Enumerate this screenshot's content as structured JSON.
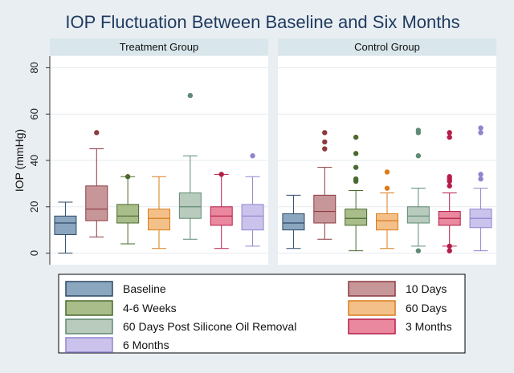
{
  "chart_data": {
    "type": "box",
    "title": "IOP Fluctuation Between Baseline and Six Months",
    "ylabel": "IOP (mmHg)",
    "xlabel": "",
    "ylim": [
      -5,
      85
    ],
    "yticks": [
      0,
      20,
      40,
      60,
      80
    ],
    "grid": true,
    "legend_position": "bottom",
    "series": [
      {
        "name": "Baseline",
        "color": "#8ba7c0",
        "edge": "#2c4966"
      },
      {
        "name": "10 Days",
        "color": "#c79699",
        "edge": "#8c3a3f"
      },
      {
        "name": "4-6 Weeks",
        "color": "#a8bd8a",
        "edge": "#4a6a2d"
      },
      {
        "name": "60 Days",
        "color": "#f4c08a",
        "edge": "#d97d1a"
      },
      {
        "name": "60 Days Post Silicone Oil Removal",
        "color": "#b8cbbd",
        "edge": "#5f8a74"
      },
      {
        "name": "3 Months",
        "color": "#e9889f",
        "edge": "#b51d48"
      },
      {
        "name": "6 Months",
        "color": "#cbc3ec",
        "edge": "#8f85cf"
      }
    ],
    "panels": [
      {
        "title": "Treatment Group",
        "boxes": [
          {
            "series": "Baseline",
            "min": 0,
            "q1": 8,
            "median": 13,
            "q3": 16,
            "max": 22,
            "outliers": []
          },
          {
            "series": "10 Days",
            "min": 7,
            "q1": 14,
            "median": 19,
            "q3": 29,
            "max": 45,
            "outliers": [
              52
            ]
          },
          {
            "series": "4-6 Weeks",
            "min": 4,
            "q1": 13,
            "median": 16,
            "q3": 21,
            "max": 33,
            "outliers": [
              33
            ]
          },
          {
            "series": "60 Days",
            "min": 2,
            "q1": 10,
            "median": 15,
            "q3": 19,
            "max": 33,
            "outliers": []
          },
          {
            "series": "60 Days Post Silicone Oil Removal",
            "min": 6,
            "q1": 15,
            "median": 20,
            "q3": 26,
            "max": 42,
            "outliers": [
              68
            ]
          },
          {
            "series": "3 Months",
            "min": 2,
            "q1": 12,
            "median": 16,
            "q3": 20,
            "max": 34,
            "outliers": [
              34
            ]
          },
          {
            "series": "6 Months",
            "min": 3,
            "q1": 10,
            "median": 16,
            "q3": 21,
            "max": 33,
            "outliers": [
              42
            ]
          }
        ]
      },
      {
        "title": "Control Group",
        "boxes": [
          {
            "series": "Baseline",
            "min": 2,
            "q1": 10,
            "median": 13,
            "q3": 17,
            "max": 25,
            "outliers": []
          },
          {
            "series": "10 Days",
            "min": 6,
            "q1": 13,
            "median": 18,
            "q3": 25,
            "max": 37,
            "outliers": [
              45,
              48,
              52
            ]
          },
          {
            "series": "4-6 Weeks",
            "min": 1,
            "q1": 12,
            "median": 15,
            "q3": 19,
            "max": 27,
            "outliers": [
              31,
              32,
              37,
              43,
              50
            ]
          },
          {
            "series": "60 Days",
            "min": 2,
            "q1": 10,
            "median": 14,
            "q3": 17,
            "max": 26,
            "outliers": [
              28,
              35
            ]
          },
          {
            "series": "60 Days Post Silicone Oil Removal",
            "min": 3,
            "q1": 13,
            "median": 16,
            "q3": 20,
            "max": 28,
            "outliers": [
              1,
              42,
              52,
              53
            ]
          },
          {
            "series": "3 Months",
            "min": 3,
            "q1": 12,
            "median": 15,
            "q3": 18,
            "max": 26,
            "outliers": [
              1,
              3,
              29,
              31,
              32,
              33,
              50,
              52
            ]
          },
          {
            "series": "6 Months",
            "min": 1,
            "q1": 11,
            "median": 15,
            "q3": 19,
            "max": 28,
            "outliers": [
              32,
              34,
              52,
              54
            ]
          }
        ]
      }
    ],
    "legend_order": [
      [
        "Baseline",
        "10 Days"
      ],
      [
        "4-6 Weeks",
        "60 Days"
      ],
      [
        "60 Days Post Silicone Oil Removal",
        "3 Months"
      ],
      [
        "6 Months",
        null
      ]
    ]
  }
}
